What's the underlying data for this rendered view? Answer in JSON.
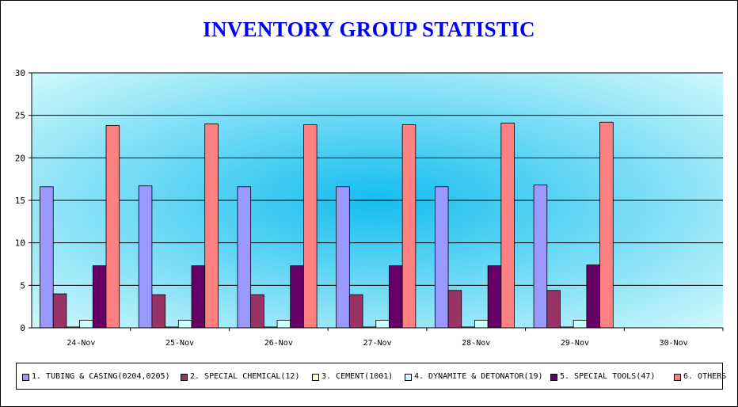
{
  "title": "INVENTORY GROUP STATISTIC",
  "colors": {
    "title": "#0000ff",
    "plot_center": "#14bdf0",
    "plot_edge": "#dcfcfc"
  },
  "chart_data": {
    "type": "bar",
    "title": "INVENTORY GROUP STATISTIC",
    "xlabel": "",
    "ylabel": "",
    "ylim": [
      0,
      30
    ],
    "yticks": [
      0,
      5,
      10,
      15,
      20,
      25,
      30
    ],
    "grid": true,
    "legend_position": "bottom",
    "categories": [
      "24-Nov",
      "25-Nov",
      "26-Nov",
      "27-Nov",
      "28-Nov",
      "29-Nov",
      "30-Nov"
    ],
    "series": [
      {
        "name": "1. TUBING & CASING(0204,0205)",
        "color": "#9999ff",
        "values": [
          16.6,
          16.7,
          16.6,
          16.6,
          16.6,
          16.8,
          null
        ]
      },
      {
        "name": "2. SPECIAL CHEMICAL(12)",
        "color": "#993366",
        "values": [
          4.0,
          3.9,
          3.9,
          3.9,
          4.4,
          4.4,
          null
        ]
      },
      {
        "name": "3. CEMENT(1001)",
        "color": "#ffffcc",
        "values": [
          0.1,
          0.1,
          0.1,
          0.1,
          0.1,
          0.1,
          null
        ]
      },
      {
        "name": "4. DYNAMITE & DETONATOR(19)",
        "color": "#ccffff",
        "values": [
          0.9,
          0.9,
          0.9,
          0.9,
          0.9,
          0.9,
          null
        ]
      },
      {
        "name": "5. SPECIAL TOOLS(47)",
        "color": "#660066",
        "values": [
          7.3,
          7.3,
          7.3,
          7.3,
          7.3,
          7.4,
          null
        ]
      },
      {
        "name": "6. OTHERS",
        "color": "#ff8080",
        "values": [
          23.8,
          24.0,
          23.9,
          23.9,
          24.1,
          24.2,
          null
        ]
      }
    ]
  }
}
